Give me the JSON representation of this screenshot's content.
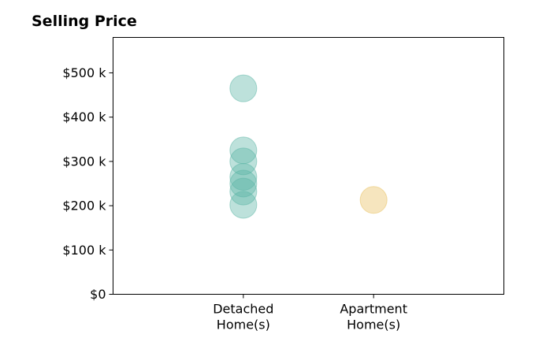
{
  "chart_data": {
    "type": "scatter",
    "title": "Selling Price",
    "xlabel": "",
    "ylabel": "",
    "categories": [
      "Detached\nHome(s)",
      "Apartment\nHome(s)"
    ],
    "xlim": [
      -1,
      2
    ],
    "ylim": [
      0,
      580000
    ],
    "yticks": [
      0,
      100000,
      200000,
      300000,
      400000,
      500000
    ],
    "ytick_labels": [
      "$0",
      "$100 k",
      "$200 k",
      "$300 k",
      "$400 k",
      "$500 k"
    ],
    "grid": false,
    "series": [
      {
        "category_index": 0,
        "color": "#5BB5A6",
        "values": [
          465000,
          325000,
          300000,
          265000,
          250000,
          232000,
          202000
        ]
      },
      {
        "category_index": 1,
        "color": "#E8BF5C",
        "values": [
          213000
        ]
      }
    ]
  }
}
